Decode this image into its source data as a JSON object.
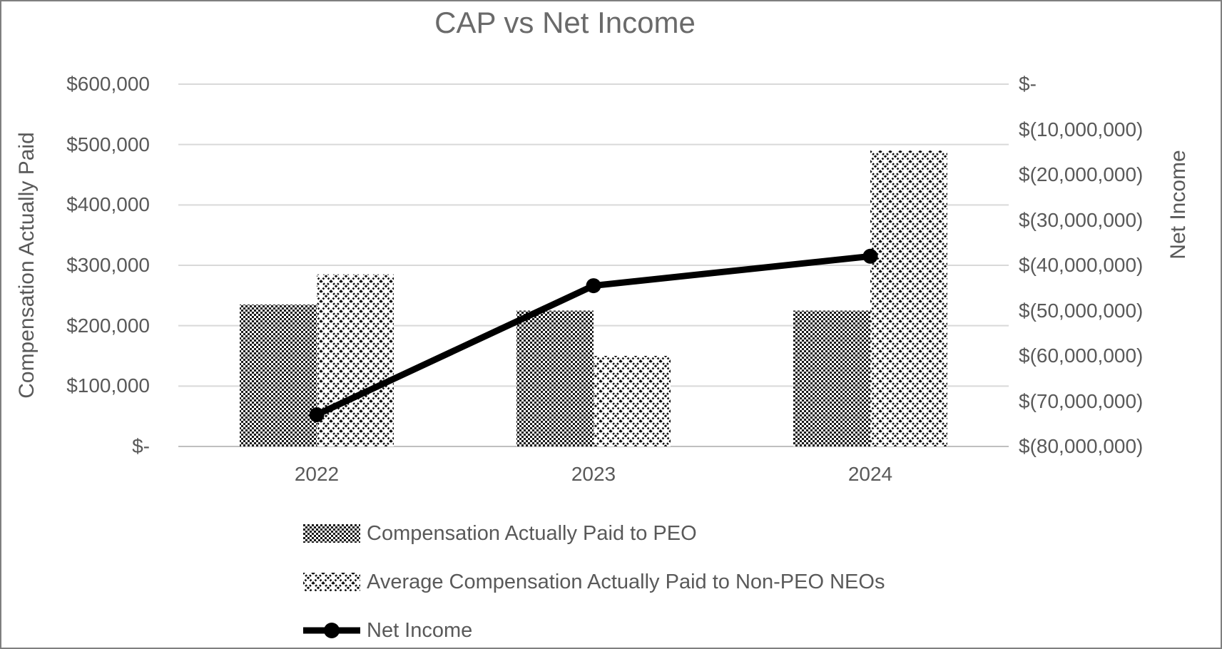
{
  "chart_data": {
    "type": "combo-bar-line",
    "title": "CAP vs Net Income",
    "categories": [
      "2022",
      "2023",
      "2024"
    ],
    "series": [
      {
        "name": "Compensation Actually Paid to PEO",
        "type": "bar",
        "axis": "left",
        "pattern": "small-checkerboard",
        "color": "#000000",
        "values": [
          235000,
          225000,
          225000
        ]
      },
      {
        "name": "Average Compensation Actually Paid to Non-PEO NEOs",
        "type": "bar",
        "axis": "left",
        "pattern": "dotted-diamond",
        "color": "#000000",
        "values": [
          285000,
          150000,
          490000
        ]
      },
      {
        "name": "Net Income",
        "type": "line",
        "axis": "right",
        "marker": "circle",
        "color": "#000000",
        "values": [
          -73000000,
          -44500000,
          -38000000
        ]
      }
    ],
    "left_axis": {
      "label": "Compensation Actually Paid",
      "range": [
        0,
        600000
      ],
      "ticks": [
        "$600,000",
        "$500,000",
        "$400,000",
        "$300,000",
        "$200,000",
        "$100,000",
        "$-"
      ]
    },
    "right_axis": {
      "label": "Net Income",
      "range": [
        -80000000,
        0
      ],
      "ticks": [
        "$-",
        "$(10,000,000)",
        "$(20,000,000)",
        "$(30,000,000)",
        "$(40,000,000)",
        "$(50,000,000)",
        "$(60,000,000)",
        "$(70,000,000)",
        "$(80,000,000)"
      ]
    },
    "grid": true,
    "legend_position": "bottom-left"
  },
  "legend": {
    "items": [
      "Compensation Actually Paid to PEO",
      "Average Compensation Actually Paid to Non-PEO NEOs",
      "Net Income"
    ]
  },
  "colors": {
    "title_text": "#6a6a6a",
    "axis_text": "#595959",
    "gridline": "#d9d9d9",
    "baseline": "#bfbfbf",
    "series": "#000000",
    "border": "#7f7f7f",
    "background": "#ffffff"
  }
}
